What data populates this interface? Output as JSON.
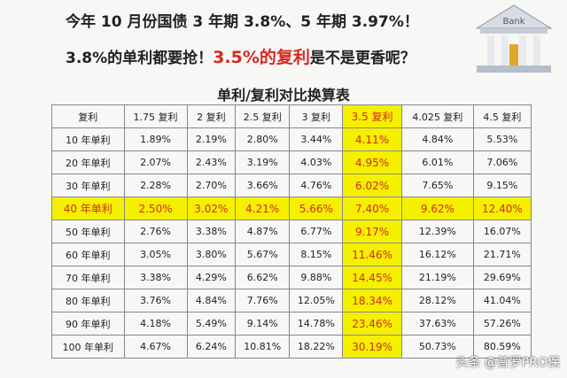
{
  "header": {
    "line1": "今年 10 月份国债 3 年期 3.8%、5 年期 3.97%！",
    "line2": [
      "3.8%的单利都要抢！",
      "3.5%的复利",
      "是不是更香呢？"
    ],
    "icon_label": "Bank"
  },
  "table": {
    "title": "单利/复利对比换算表",
    "columns": [
      "复利",
      "1.75 复利",
      "2 复利",
      "2.5 复利",
      "3 复利",
      "3.5 复利",
      "4.025 复利",
      "4.5 复利"
    ],
    "rows": [
      [
        "10 年单利",
        "1.89%",
        "2.19%",
        "2.80%",
        "3.44%",
        "4.11%",
        "4.84%",
        "5.53%"
      ],
      [
        "20 年单利",
        "2.07%",
        "2.43%",
        "3.19%",
        "4.03%",
        "4.95%",
        "6.01%",
        "7.06%"
      ],
      [
        "30 年单利",
        "2.28%",
        "2.70%",
        "3.66%",
        "4.76%",
        "6.02%",
        "7.65%",
        "9.15%"
      ],
      [
        "40 年单利",
        "2.50%",
        "3.02%",
        "4.21%",
        "5.66%",
        "7.40%",
        "9.62%",
        "12.40%"
      ],
      [
        "50 年单利",
        "2.76%",
        "3.38%",
        "4.87%",
        "6.77%",
        "9.17%",
        "12.39%",
        "16.07%"
      ],
      [
        "60 年单利",
        "3.05%",
        "3.80%",
        "5.67%",
        "8.15%",
        "11.46%",
        "16.12%",
        "21.71%"
      ],
      [
        "70 年单利",
        "3.38%",
        "4.29%",
        "6.62%",
        "9.88%",
        "14.45%",
        "21.19%",
        "29.69%"
      ],
      [
        "80 年单利",
        "3.76%",
        "4.84%",
        "7.76%",
        "12.05%",
        "18.34%",
        "28.12%",
        "41.04%"
      ],
      [
        "90 年单利",
        "4.18%",
        "5.49%",
        "9.14%",
        "14.78%",
        "23.46%",
        "37.63%",
        "57.26%"
      ],
      [
        "100 年单利",
        "4.67%",
        "6.24%",
        "10.81%",
        "18.22%",
        "30.19%",
        "50.73%",
        "80.59%"
      ]
    ]
  },
  "watermark": {
    "source": "头条",
    "account": "@普罗PRO保"
  }
}
